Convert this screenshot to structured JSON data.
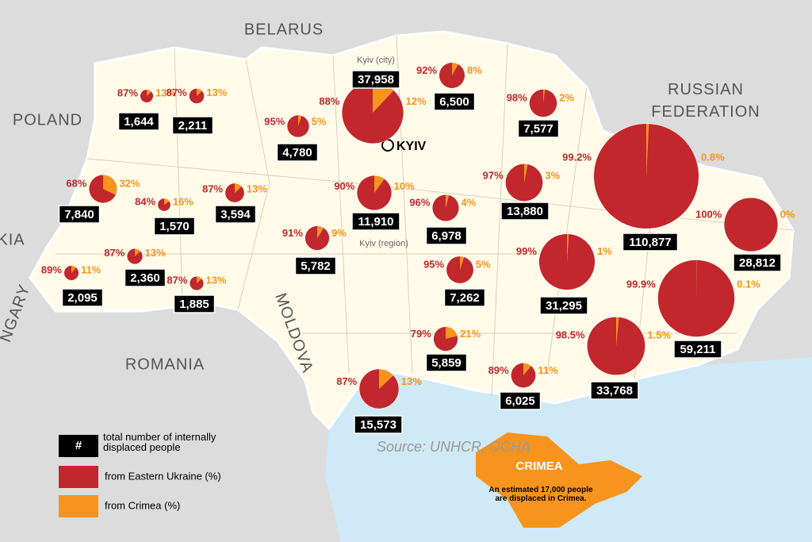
{
  "countries": [
    "BELARUS",
    "POLAND",
    "RUSSIAN FEDERATION",
    "ROMANIA",
    "MOLDOVA",
    "KIA",
    "NGARY"
  ],
  "cities": [
    "Kyiv (city)",
    "KYIV",
    "Kyiv (region)"
  ],
  "colors": {
    "east": "#c1272d",
    "crimea": "#f7941d",
    "total": "#000000"
  },
  "regions": [
    {
      "total": 1644,
      "total_label": "1,644",
      "east": 87,
      "east_label": "87%",
      "crimea": 13,
      "crimea_label": "13%"
    },
    {
      "total": 2211,
      "total_label": "2,211",
      "east": 87,
      "east_label": "87%",
      "crimea": 13,
      "crimea_label": "13%"
    },
    {
      "total": 4780,
      "total_label": "4,780",
      "east": 95,
      "east_label": "95%",
      "crimea": 5,
      "crimea_label": "5%"
    },
    {
      "total": 37958,
      "total_label": "37,958",
      "east": 88,
      "east_label": "88%",
      "crimea": 12,
      "crimea_label": "12%"
    },
    {
      "total": 6500,
      "total_label": "6,500",
      "east": 92,
      "east_label": "92%",
      "crimea": 8,
      "crimea_label": "8%"
    },
    {
      "total": 7577,
      "total_label": "7,577",
      "east": 98,
      "east_label": "98%",
      "crimea": 2,
      "crimea_label": "2%"
    },
    {
      "total": 110877,
      "total_label": "110,877",
      "east": 99.2,
      "east_label": "99.2%",
      "crimea": 0.8,
      "crimea_label": "0.8%"
    },
    {
      "total": 7840,
      "total_label": "7,840",
      "east": 68,
      "east_label": "68%",
      "crimea": 32,
      "crimea_label": "32%"
    },
    {
      "total": 1570,
      "total_label": "1,570",
      "east": 84,
      "east_label": "84%",
      "crimea": 16,
      "crimea_label": "16%"
    },
    {
      "total": 3594,
      "total_label": "3,594",
      "east": 87,
      "east_label": "87%",
      "crimea": 13,
      "crimea_label": "13%"
    },
    {
      "total": 11910,
      "total_label": "11,910",
      "east": 90,
      "east_label": "90%",
      "crimea": 10,
      "crimea_label": "10%"
    },
    {
      "total": 6978,
      "total_label": "6,978",
      "east": 96,
      "east_label": "96%",
      "crimea": 4,
      "crimea_label": "4%"
    },
    {
      "total": 13880,
      "total_label": "13,880",
      "east": 97,
      "east_label": "97%",
      "crimea": 3,
      "crimea_label": "3%"
    },
    {
      "total": 28812,
      "total_label": "28,812",
      "east": 100,
      "east_label": "100%",
      "crimea": 0,
      "crimea_label": "0%"
    },
    {
      "total": 2095,
      "total_label": "2,095",
      "east": 89,
      "east_label": "89%",
      "crimea": 11,
      "crimea_label": "11%"
    },
    {
      "total": 2360,
      "total_label": "2,360",
      "east": 87,
      "east_label": "87%",
      "crimea": 13,
      "crimea_label": "13%"
    },
    {
      "total": 1885,
      "total_label": "1,885",
      "east": 87,
      "east_label": "87%",
      "crimea": 13,
      "crimea_label": "13%"
    },
    {
      "total": 5782,
      "total_label": "5,782",
      "east": 91,
      "east_label": "91%",
      "crimea": 9,
      "crimea_label": "9%"
    },
    {
      "total": 7262,
      "total_label": "7,262",
      "east": 95,
      "east_label": "95%",
      "crimea": 5,
      "crimea_label": "5%"
    },
    {
      "total": 31295,
      "total_label": "31,295",
      "east": 99,
      "east_label": "99%",
      "crimea": 1,
      "crimea_label": "1%"
    },
    {
      "total": 59211,
      "total_label": "59,211",
      "east": 99.9,
      "east_label": "99.9%",
      "crimea": 0.1,
      "crimea_label": "0.1%"
    },
    {
      "total": 5859,
      "total_label": "5,859",
      "east": 79,
      "east_label": "79%",
      "crimea": 21,
      "crimea_label": "21%"
    },
    {
      "total": 33768,
      "total_label": "33,768",
      "east": 98.5,
      "east_label": "98.5%",
      "crimea": 1.5,
      "crimea_label": "1.5%"
    },
    {
      "total": 6025,
      "total_label": "6,025",
      "east": 89,
      "east_label": "89%",
      "crimea": 11,
      "crimea_label": "11%"
    },
    {
      "total": 15573,
      "total_label": "15,573",
      "east": 87,
      "east_label": "87%",
      "crimea": 13,
      "crimea_label": "13%"
    }
  ],
  "legend": {
    "symbol": "#",
    "total": "total number of internally displaced people",
    "east": "from Eastern Ukraine (%)",
    "crimea": "from Crimea (%)"
  },
  "source": "Source: UNHCR, OCHA",
  "crimea": {
    "title": "CRIMEA",
    "note": "An estimated 17,000 people are displaced in Crimea."
  }
}
